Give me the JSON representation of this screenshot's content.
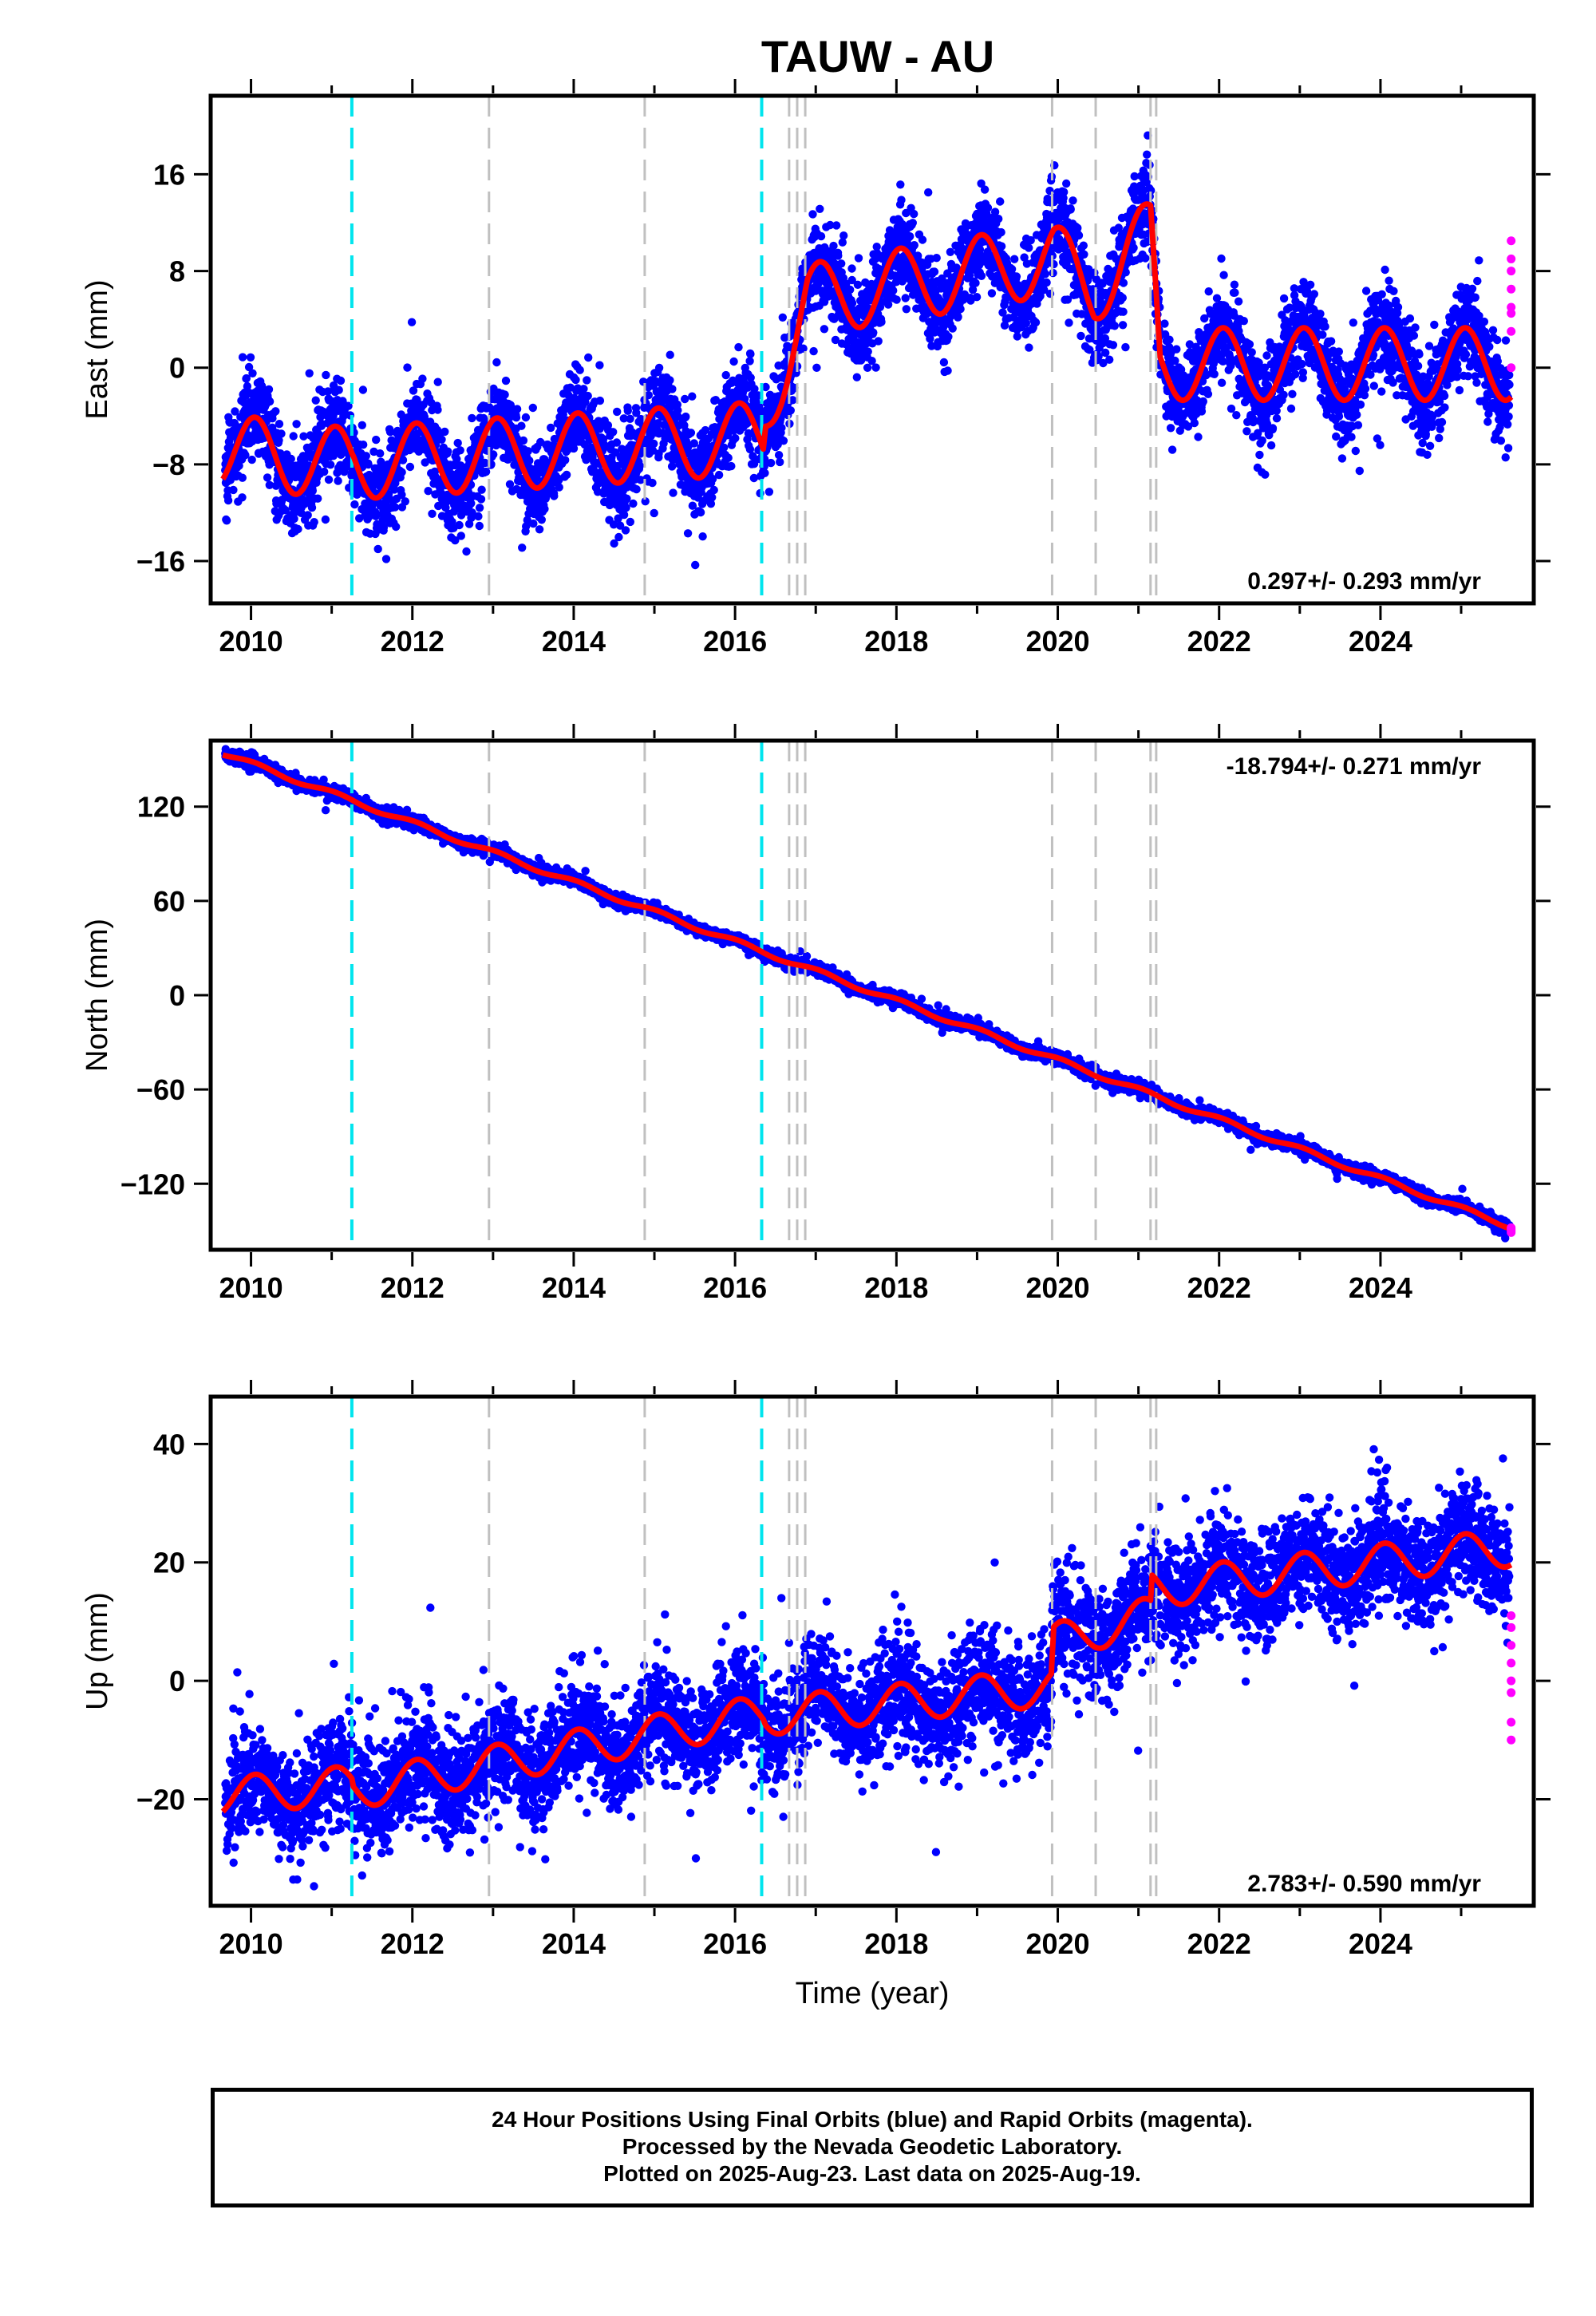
{
  "title": "TAUW - AU",
  "chart_data": [
    {
      "type": "scatter",
      "ylabel": "East (mm)",
      "xlabel": "",
      "xlim": [
        2009.5,
        2025.9
      ],
      "ylim": [
        -19.5,
        22.5
      ],
      "yticks": [
        -16,
        -8,
        0,
        8,
        16
      ],
      "xticks": [
        2010,
        2012,
        2014,
        2016,
        2018,
        2020,
        2022,
        2024
      ],
      "rate_text": "0.297+/- 0.293 mm/yr",
      "rate_pos": "bottom-right",
      "fit": {
        "color": "#ff0000",
        "offsets": [
          [
            2009.65,
            -6.8
          ],
          [
            2011.25,
            -8.0
          ],
          [
            2011.27,
            -7.9
          ],
          [
            2016.35,
            -5.8
          ],
          [
            2016.38,
            -3.4
          ],
          [
            2016.9,
            5.6
          ],
          [
            2019.95,
            9.0
          ],
          [
            2020.45,
            6.6
          ],
          [
            2021.15,
            11.0
          ],
          [
            2021.27,
            0.3
          ]
        ],
        "annual_amp": 3.0,
        "annual_phase": 2009.8
      },
      "noise": 1.8,
      "breaks_equipment": [
        2011.25,
        2016.33
      ],
      "breaks_other": [
        2012.95,
        2014.88,
        2016.67,
        2016.77,
        2016.87,
        2019.93,
        2020.47,
        2021.15,
        2021.22
      ],
      "rapid_points": [
        10.5,
        9.0,
        8.0,
        6.5,
        5.0,
        4.5,
        3.0,
        0.0
      ]
    },
    {
      "type": "scatter",
      "ylabel": "North (mm)",
      "xlabel": "",
      "xlim": [
        2009.5,
        2025.9
      ],
      "ylim": [
        -162,
        162
      ],
      "yticks": [
        -120,
        -60,
        0,
        60,
        120
      ],
      "xticks": [
        2010,
        2012,
        2014,
        2016,
        2018,
        2020,
        2022,
        2024
      ],
      "rate_text": "-18.794+/- 0.271 mm/yr",
      "rate_pos": "top-right",
      "fit": {
        "color": "#ff0000",
        "linear": [
          [
            2009.65,
            154
          ],
          [
            2025.6,
            -147
          ]
        ],
        "annual_amp": 1.5,
        "annual_phase": 2009.8
      },
      "noise": 1.8,
      "breaks_equipment": [
        2011.25,
        2016.33
      ],
      "breaks_other": [
        2012.95,
        2014.88,
        2016.67,
        2016.77,
        2016.87,
        2019.93,
        2020.47,
        2021.15,
        2021.22
      ],
      "rapid_points": [
        -151,
        -150,
        -149,
        -148
      ]
    },
    {
      "type": "scatter",
      "ylabel": "Up (mm)",
      "xlabel": "Time (year)",
      "xlim": [
        2009.5,
        2025.9
      ],
      "ylim": [
        -38,
        48
      ],
      "yticks": [
        -20,
        0,
        20,
        40
      ],
      "xticks": [
        2010,
        2012,
        2014,
        2016,
        2018,
        2020,
        2022,
        2024
      ],
      "rate_text": "2.783+/- 0.590 mm/yr",
      "rate_pos": "bottom-right",
      "fit": {
        "color": "#ff0000",
        "offsets": [
          [
            2009.65,
            -19.5
          ],
          [
            2011.25,
            -17.5
          ],
          [
            2011.27,
            -18.5
          ],
          [
            2016.35,
            -5.5
          ],
          [
            2016.38,
            -6.0
          ],
          [
            2019.92,
            -1.0
          ],
          [
            2019.95,
            6.5
          ],
          [
            2021.15,
            11.0
          ],
          [
            2021.17,
            15.5
          ],
          [
            2025.6,
            22.5
          ]
        ],
        "annual_amp": 3.2,
        "annual_phase": 2009.8
      },
      "noise": 4.5,
      "breaks_equipment": [
        2011.25,
        2016.33
      ],
      "breaks_other": [
        2012.95,
        2014.88,
        2016.67,
        2016.77,
        2016.87,
        2019.93,
        2020.47,
        2021.15,
        2021.22
      ],
      "rapid_points": [
        11.0,
        9.0,
        6.0,
        3.0,
        0.0,
        -2.0,
        -7.0,
        -10.0
      ]
    }
  ],
  "colors": {
    "final_orbits": "#0000ff",
    "rapid_orbits": "#ff00ff",
    "fit": "#ff0000",
    "equipment_break": "#00e5ee",
    "other_break": "#c0c0c0"
  },
  "footer": {
    "line1": "24 Hour Positions Using Final Orbits (blue) and Rapid Orbits (magenta).",
    "line2": "Processed by the Nevada Geodetic Laboratory.",
    "line3": "Plotted on 2025-Aug-23. Last data on 2025-Aug-19."
  }
}
